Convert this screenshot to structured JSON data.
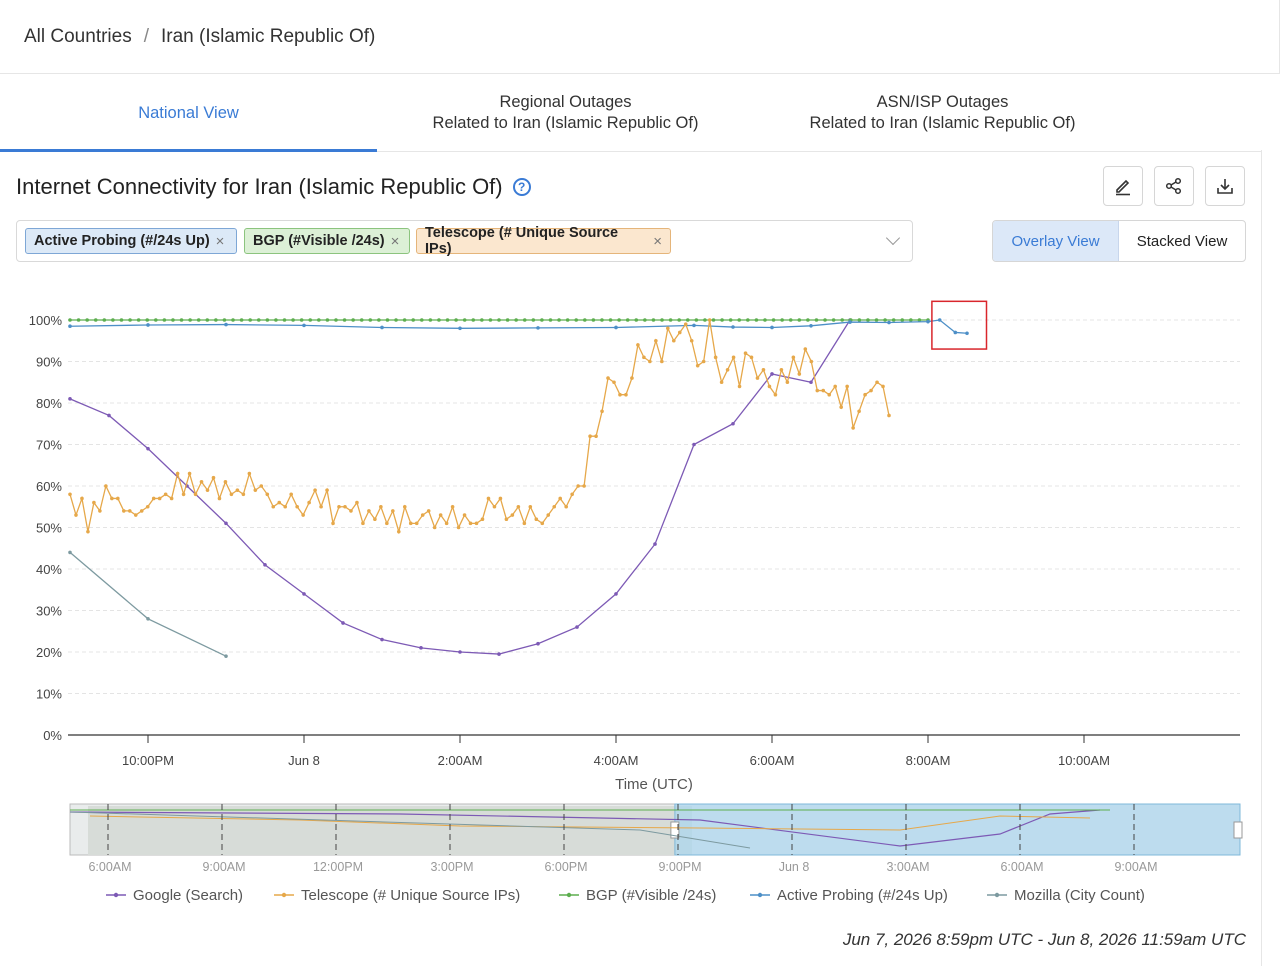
{
  "breadcrumb": {
    "root": "All Countries",
    "separator": "/",
    "current": "Iran (Islamic Republic Of)"
  },
  "tabs": [
    {
      "line1": "National View",
      "line2": "",
      "active": true
    },
    {
      "line1": "Regional Outages",
      "line2": "Related to Iran (Islamic Republic Of)",
      "active": false
    },
    {
      "line1": "ASN/ISP Outages",
      "line2": "Related to Iran (Islamic Republic Of)",
      "active": false
    }
  ],
  "panel": {
    "title": "Internet Connectivity for Iran (Islamic Republic Of)",
    "help_icon": "question-circle-icon",
    "actions": [
      {
        "name": "edit-button",
        "icon": "pencil-icon"
      },
      {
        "name": "share-button",
        "icon": "share-icon"
      },
      {
        "name": "download-button",
        "icon": "download-icon"
      }
    ],
    "chips": [
      {
        "label": "Active Probing (#/24s Up)",
        "remove": "×"
      },
      {
        "label": "BGP (#Visible /24s)",
        "remove": "×"
      },
      {
        "label": "Telescope (# Unique Source IPs)",
        "remove": "×"
      }
    ],
    "view_toggle": {
      "overlay": "Overlay View",
      "stacked": "Stacked View",
      "selected": "overlay"
    }
  },
  "chart_data": {
    "type": "line",
    "xlabel": "Time (UTC)",
    "y_ticks": [
      "100%",
      "90%",
      "80%",
      "70%",
      "60%",
      "50%",
      "40%",
      "30%",
      "20%",
      "10%",
      "0%"
    ],
    "ylim": [
      0,
      100
    ],
    "x_range_hours": [
      -3.3,
      9.2
    ],
    "x_ticks": [
      {
        "label": "10:00PM",
        "h": -2
      },
      {
        "label": "Jun 8",
        "h": 0
      },
      {
        "label": "2:00AM",
        "h": 2
      },
      {
        "label": "4:00AM",
        "h": 4
      },
      {
        "label": "6:00AM",
        "h": 6
      },
      {
        "label": "8:00AM",
        "h": 8
      },
      {
        "label": "10:00AM",
        "h": 10
      }
    ],
    "grid": true,
    "series": [
      {
        "name": "Google (Search)",
        "color": "#7d5ab5",
        "x": [
          -3,
          -2.5,
          -2,
          -1.5,
          -1,
          -0.5,
          0,
          0.5,
          1,
          1.5,
          2,
          2.5,
          3,
          3.5,
          4,
          4.5,
          5,
          5.5,
          6,
          6.5,
          7
        ],
        "y": [
          81,
          77,
          69,
          60,
          51,
          41,
          34,
          27,
          23,
          21,
          20,
          19.5,
          22,
          26,
          34,
          46,
          70,
          75,
          87,
          85,
          100
        ]
      },
      {
        "name": "Mozilla (City Count)",
        "color": "#7d9aa0",
        "x": [
          -3,
          -2,
          -1
        ],
        "y": [
          44,
          28,
          19
        ]
      },
      {
        "name": "BGP (#Visible /24s)",
        "color": "#5dae4f",
        "x_start": -3,
        "x_end": 8.1,
        "y_value": 100
      },
      {
        "name": "Active Probing (#/24s Up)",
        "color": "#4d8fc7",
        "x": [
          -3,
          -2,
          -1,
          0,
          1,
          2,
          3,
          4,
          5,
          5.5,
          6,
          6.5,
          7,
          7.5,
          8,
          8.15,
          8.35,
          8.5
        ],
        "y": [
          98.5,
          98.8,
          98.9,
          98.7,
          98.2,
          98.0,
          98.1,
          98.2,
          98.7,
          98.3,
          98.2,
          98.6,
          99.5,
          99.4,
          99.6,
          100,
          97,
          96.8
        ]
      },
      {
        "name": "Telescope (# Unique Source IPs)",
        "color": "#e6a84a",
        "x_start": -3,
        "x_end": 7.5,
        "y": [
          58,
          53,
          57,
          49,
          56,
          54,
          60,
          57,
          57,
          54,
          54,
          53,
          54,
          55,
          57,
          57,
          58,
          57,
          63,
          58,
          63,
          58,
          61,
          59,
          62,
          57,
          61,
          58,
          59,
          58,
          63,
          59,
          60,
          58,
          55,
          56,
          55,
          58,
          55,
          53,
          56,
          59,
          55,
          59,
          51,
          55,
          55,
          54,
          56,
          51,
          54,
          52,
          55,
          51,
          54,
          49,
          55,
          51,
          51,
          53,
          54,
          50,
          53,
          51,
          55,
          50,
          53,
          51,
          51,
          52,
          57,
          55,
          57,
          52,
          53,
          55,
          51,
          55,
          52,
          51,
          53,
          55,
          57,
          55,
          58,
          60,
          60,
          72,
          72,
          78,
          86,
          85,
          82,
          82,
          86,
          94,
          91,
          90,
          95,
          90,
          98,
          95,
          97,
          99,
          95,
          89,
          90,
          100,
          91,
          85,
          88,
          91,
          84,
          92,
          91,
          86,
          88,
          84,
          82,
          88,
          85,
          91,
          87,
          93,
          90,
          83,
          83,
          82,
          84,
          79,
          84,
          74,
          78,
          82,
          83,
          85,
          84,
          77
        ]
      }
    ],
    "highlight_box": {
      "x0": 8.05,
      "x1": 8.75,
      "y0": 93,
      "y1": 104.5
    },
    "navigator": {
      "ticks": [
        "6:00AM",
        "9:00AM",
        "12:00PM",
        "3:00PM",
        "6:00PM",
        "9:00PM",
        "Jun 8",
        "3:00AM",
        "6:00AM",
        "9:00AM"
      ],
      "selection_start_fraction": 0.517,
      "selection_end_fraction": 1.0
    }
  },
  "legend": [
    {
      "label": "Google (Search)",
      "color": "#7d5ab5"
    },
    {
      "label": "Telescope (# Unique Source IPs)",
      "color": "#e6a84a"
    },
    {
      "label": "BGP (#Visible /24s)",
      "color": "#5dae4f"
    },
    {
      "label": "Active Probing (#/24s Up)",
      "color": "#4d8fc7"
    },
    {
      "label": "Mozilla (City Count)",
      "color": "#7d9aa0"
    }
  ],
  "daterange": "Jun 7, 2026 8:59pm UTC - Jun 8, 2026 11:59am UTC"
}
